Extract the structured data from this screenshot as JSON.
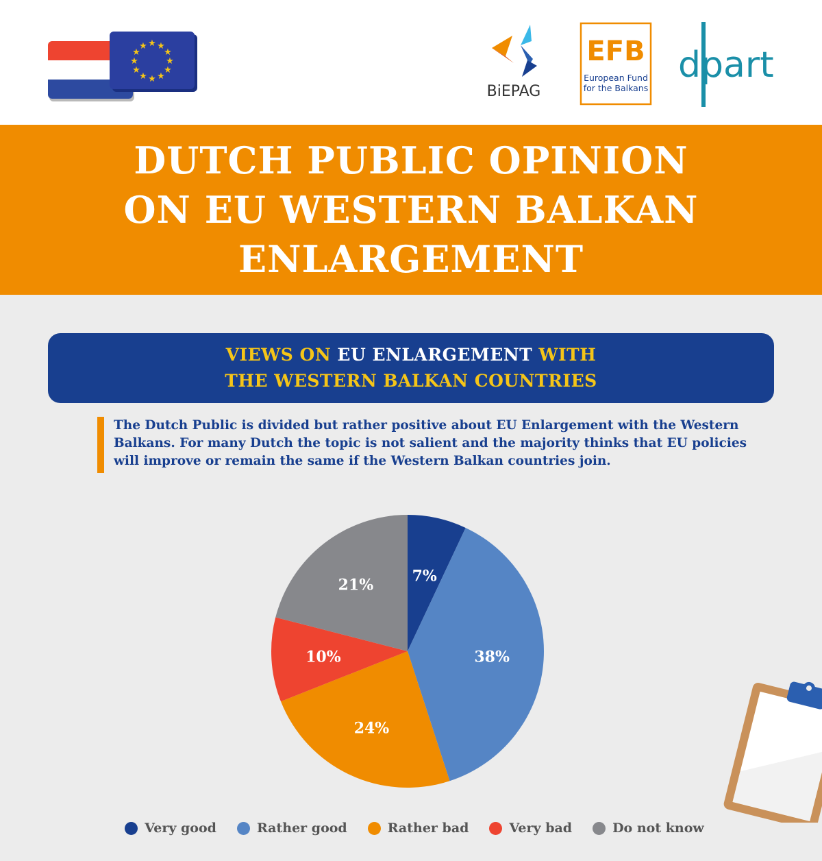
{
  "header": {
    "logos": {
      "biepag": "BiEPAG",
      "efb_mark": "EFB",
      "efb_line1": "European Fund",
      "efb_line2": "for the Balkans",
      "dpart": "dpart"
    },
    "flags": [
      "netherlands-flag",
      "eu-flag"
    ]
  },
  "title": "DUTCH PUBLIC OPINION ON EU WESTERN BALKAN ENLARGEMENT",
  "subhead": {
    "part1": "VIEWS ON ",
    "part2": "EU ENLARGEMENT",
    "part3": " WITH",
    "part4": "THE WESTERN BALKAN COUNTRIES"
  },
  "description": "The Dutch Public is divided but rather positive about EU Enlargement with the Western Balkans. For many Dutch the topic is not salient and the majority thinks that EU policies will improve or remain the same if the Western Balkan countries join.",
  "chart_data": {
    "type": "pie",
    "categories": [
      "Very good",
      "Rather good",
      "Rather bad",
      "Very bad",
      "Do not know"
    ],
    "values": [
      7,
      38,
      24,
      10,
      21
    ],
    "labels": [
      "7%",
      "38%",
      "24%",
      "10%",
      "21%"
    ],
    "colors": [
      "#183f8f",
      "#5585c5",
      "#f08c00",
      "#ee4430",
      "#87888c"
    ],
    "start_angle_deg": 0,
    "direction": "clockwise",
    "legend_placement": "bottom"
  },
  "colors": {
    "orange": "#f08c00",
    "navy": "#183f8f",
    "yellow": "#f5c518",
    "background": "#ececec"
  }
}
